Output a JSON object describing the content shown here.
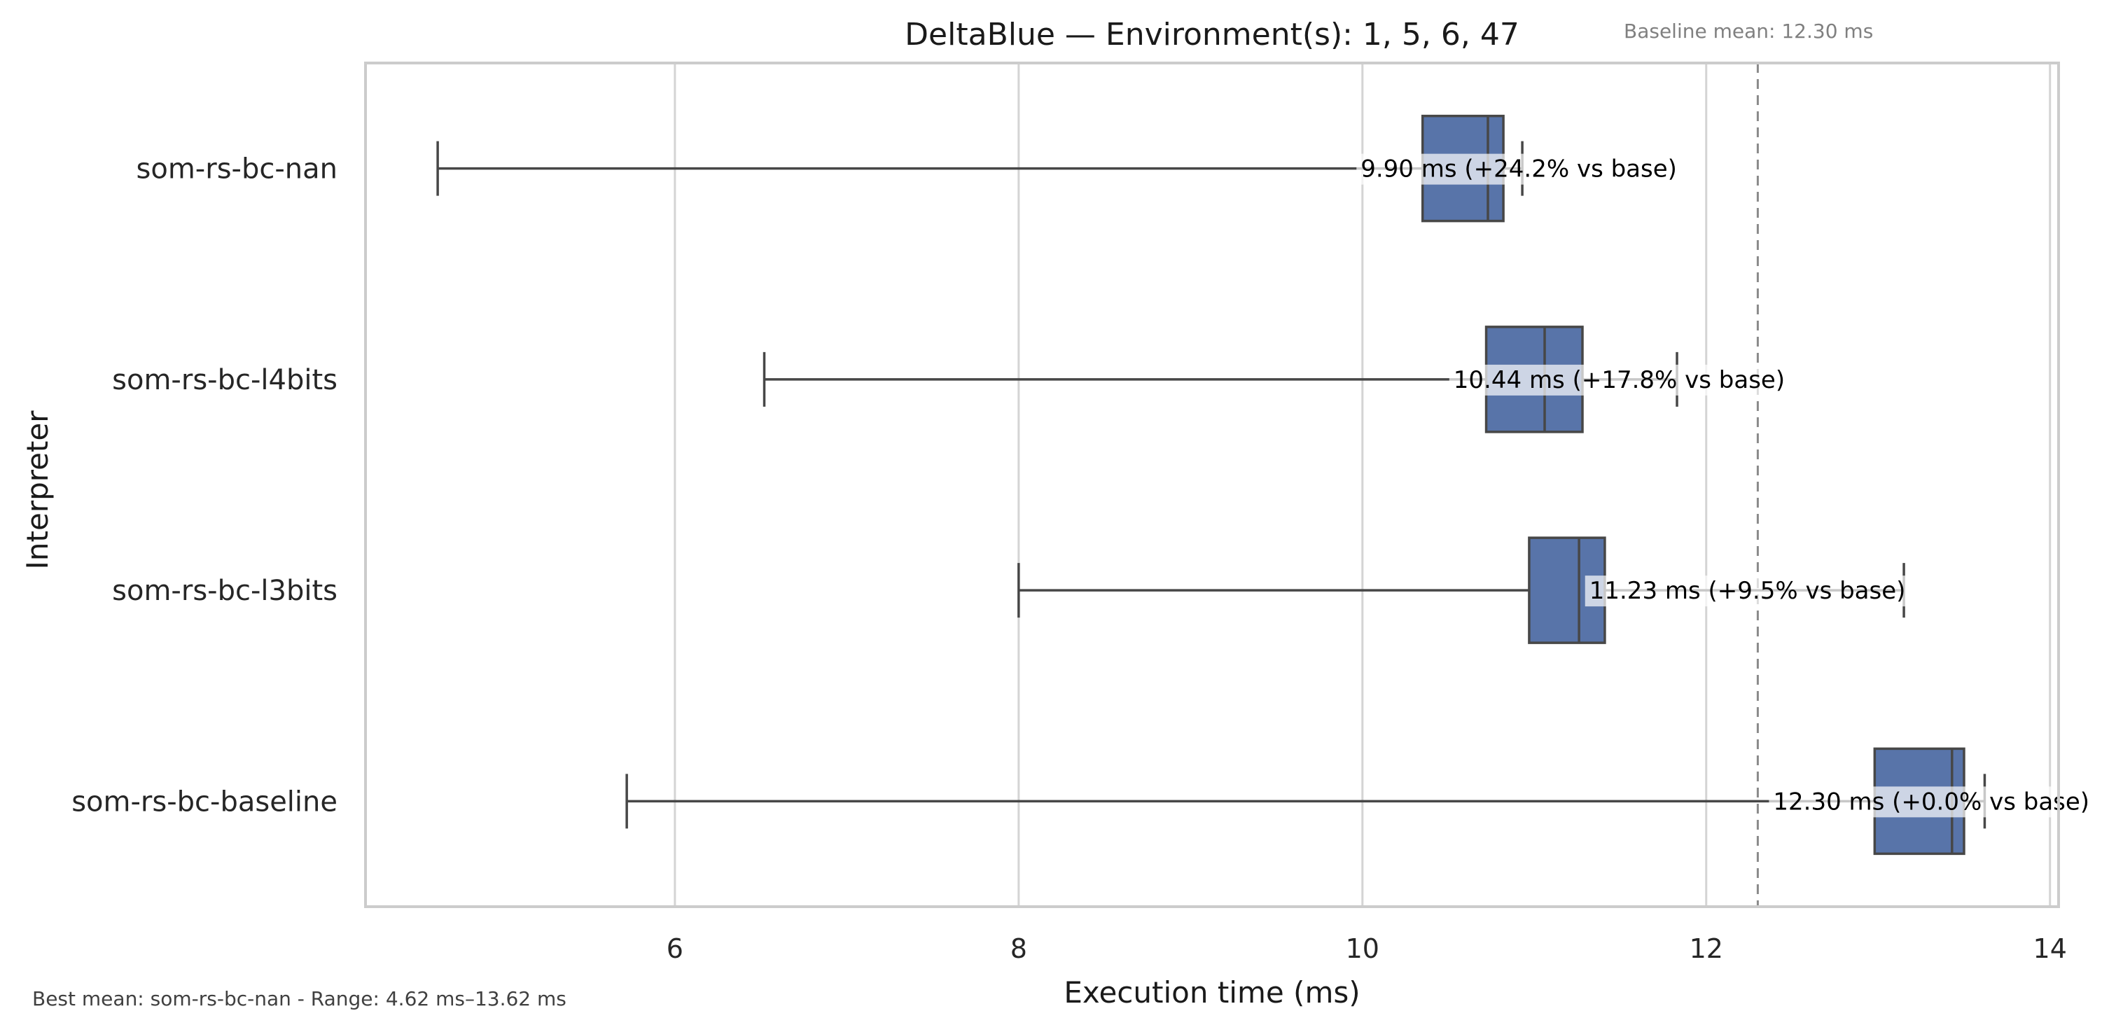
{
  "chart_data": {
    "type": "box",
    "orientation": "horizontal",
    "title": "DeltaBlue — Environment(s): 1, 5, 6, 47",
    "xlabel": "Execution time (ms)",
    "ylabel": "Interpreter",
    "xlim": [
      4.2,
      14.05
    ],
    "xticks": [
      6,
      8,
      10,
      12,
      14
    ],
    "grid": true,
    "box_color": "#5874a9",
    "categories": [
      "som-rs-bc-nan",
      "som-rs-bc-l4bits",
      "som-rs-bc-l3bits",
      "som-rs-bc-baseline"
    ],
    "boxes": [
      {
        "label": "som-rs-bc-nan",
        "whisker_low": 4.62,
        "q1": 10.35,
        "median": 10.73,
        "q3": 10.82,
        "whisker_high": 10.93,
        "mean": 9.9,
        "annotation": "9.90 ms  (+24.2% vs base)"
      },
      {
        "label": "som-rs-bc-l4bits",
        "whisker_low": 6.52,
        "q1": 10.72,
        "median": 11.06,
        "q3": 11.28,
        "whisker_high": 11.83,
        "mean": 10.44,
        "annotation": "10.44 ms  (+17.8% vs base)"
      },
      {
        "label": "som-rs-bc-l3bits",
        "whisker_low": 8.0,
        "q1": 10.97,
        "median": 11.26,
        "q3": 11.41,
        "whisker_high": 13.15,
        "mean": 11.23,
        "annotation": "11.23 ms  (+9.5% vs base)"
      },
      {
        "label": "som-rs-bc-baseline",
        "whisker_low": 5.72,
        "q1": 12.98,
        "median": 13.43,
        "q3": 13.5,
        "whisker_high": 13.62,
        "mean": 12.3,
        "annotation": "12.30 ms  (+0.0% vs base)"
      }
    ],
    "baseline_mean": 12.3,
    "baseline_note": "Baseline mean: 12.30 ms",
    "footer_note": "Best mean: som-rs-bc-nan - Range: 4.62 ms–13.62 ms"
  }
}
